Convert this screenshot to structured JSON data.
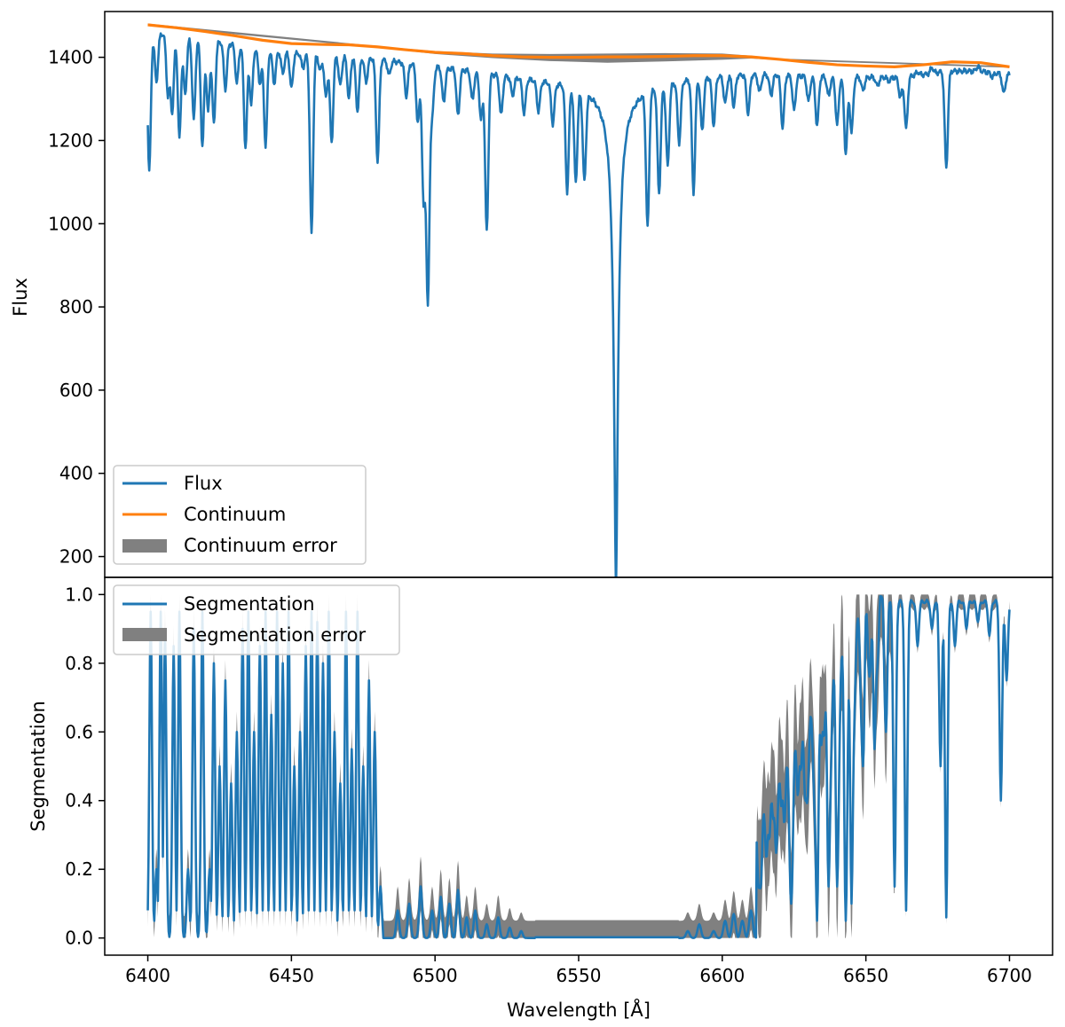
{
  "colors": {
    "flux": "#1f77b4",
    "continuum": "#ff7f0e",
    "error": "#808080",
    "frame": "#000000",
    "legend_border": "#cccccc"
  },
  "chart_data": [
    {
      "type": "line",
      "panel": "top",
      "ylabel": "Flux",
      "xlim": [
        6385,
        6715
      ],
      "ylim": [
        150,
        1510
      ],
      "yticks": [
        200,
        400,
        600,
        800,
        1000,
        1200,
        1400
      ],
      "ytick_labels": [
        "200",
        "400",
        "600",
        "800",
        "1000",
        "1200",
        "1400"
      ],
      "legend_position": "lower-left",
      "legend": [
        {
          "name": "Flux",
          "kind": "line",
          "color": "#1f77b4"
        },
        {
          "name": "Continuum",
          "kind": "line",
          "color": "#ff7f0e"
        },
        {
          "name": "Continuum error",
          "kind": "patch",
          "color": "#808080"
        }
      ],
      "continuum": {
        "x": [
          6400,
          6410,
          6420,
          6430,
          6440,
          6450,
          6460,
          6470,
          6480,
          6490,
          6500,
          6510,
          6520,
          6530,
          6540,
          6550,
          6560,
          6570,
          6580,
          6590,
          6600,
          6610,
          6620,
          6630,
          6640,
          6650,
          6660,
          6670,
          6680,
          6690,
          6700
        ],
        "y": [
          1478,
          1471,
          1462,
          1452,
          1441,
          1433,
          1431,
          1430,
          1425,
          1418,
          1412,
          1409,
          1404,
          1401,
          1400,
          1400,
          1401,
          1401,
          1402,
          1404,
          1404,
          1401,
          1395,
          1388,
          1382,
          1379,
          1377,
          1382,
          1389,
          1387,
          1377
        ]
      },
      "continuum_error": {
        "x": [
          6400,
          6480,
          6500,
          6520,
          6540,
          6560,
          6580,
          6600,
          6610,
          6620,
          6700
        ],
        "upper": [
          1481,
          1427,
          1415,
          1409,
          1408,
          1409,
          1410,
          1409,
          1404,
          1397,
          1379
        ],
        "lower": [
          1475,
          1423,
          1408,
          1398,
          1391,
          1387,
          1390,
          1394,
          1397,
          1393,
          1375
        ]
      },
      "flux": {
        "halpha": {
          "center": 6563,
          "min_flux": 190
        },
        "lines": [
          {
            "x": 6400.5,
            "y": 1115
          },
          {
            "x": 6403,
            "y": 1330
          },
          {
            "x": 6407,
            "y": 1300
          },
          {
            "x": 6408.5,
            "y": 1258
          },
          {
            "x": 6411,
            "y": 1195
          },
          {
            "x": 6413,
            "y": 1300
          },
          {
            "x": 6416,
            "y": 1240
          },
          {
            "x": 6419,
            "y": 1175
          },
          {
            "x": 6421,
            "y": 1260
          },
          {
            "x": 6423,
            "y": 1230
          },
          {
            "x": 6427,
            "y": 1315
          },
          {
            "x": 6431,
            "y": 1330
          },
          {
            "x": 6434,
            "y": 1175
          },
          {
            "x": 6436,
            "y": 1280
          },
          {
            "x": 6439,
            "y": 1330
          },
          {
            "x": 6441,
            "y": 1180
          },
          {
            "x": 6444,
            "y": 1330
          },
          {
            "x": 6447,
            "y": 1355
          },
          {
            "x": 6450,
            "y": 1320
          },
          {
            "x": 6454,
            "y": 1370
          },
          {
            "x": 6457,
            "y": 972
          },
          {
            "x": 6460,
            "y": 1365
          },
          {
            "x": 6462,
            "y": 1300
          },
          {
            "x": 6464,
            "y": 1190
          },
          {
            "x": 6467,
            "y": 1330
          },
          {
            "x": 6470,
            "y": 1300
          },
          {
            "x": 6473,
            "y": 1270
          },
          {
            "x": 6476,
            "y": 1340
          },
          {
            "x": 6480,
            "y": 1150
          },
          {
            "x": 6484,
            "y": 1360
          },
          {
            "x": 6490,
            "y": 1310
          },
          {
            "x": 6494,
            "y": 1245
          },
          {
            "x": 6496,
            "y": 1060
          },
          {
            "x": 6497.5,
            "y": 815
          },
          {
            "x": 6499,
            "y": 1270
          },
          {
            "x": 6503,
            "y": 1300
          },
          {
            "x": 6508,
            "y": 1270
          },
          {
            "x": 6513,
            "y": 1310
          },
          {
            "x": 6516,
            "y": 1265
          },
          {
            "x": 6518,
            "y": 995
          },
          {
            "x": 6523,
            "y": 1280
          },
          {
            "x": 6527,
            "y": 1330
          },
          {
            "x": 6531,
            "y": 1290
          },
          {
            "x": 6536,
            "y": 1300
          },
          {
            "x": 6541,
            "y": 1275
          },
          {
            "x": 6546,
            "y": 1120
          },
          {
            "x": 6549,
            "y": 1150
          },
          {
            "x": 6552,
            "y": 1160
          },
          {
            "x": 6574,
            "y": 1050
          },
          {
            "x": 6578,
            "y": 1120
          },
          {
            "x": 6581,
            "y": 1180
          },
          {
            "x": 6585,
            "y": 1230
          },
          {
            "x": 6590,
            "y": 1105
          },
          {
            "x": 6593,
            "y": 1250
          },
          {
            "x": 6597,
            "y": 1260
          },
          {
            "x": 6601,
            "y": 1310
          },
          {
            "x": 6604,
            "y": 1300
          },
          {
            "x": 6609,
            "y": 1280
          },
          {
            "x": 6613,
            "y": 1330
          },
          {
            "x": 6617,
            "y": 1320
          },
          {
            "x": 6621,
            "y": 1240
          },
          {
            "x": 6625,
            "y": 1280
          },
          {
            "x": 6630,
            "y": 1300
          },
          {
            "x": 6633,
            "y": 1240
          },
          {
            "x": 6637,
            "y": 1310
          },
          {
            "x": 6640,
            "y": 1240
          },
          {
            "x": 6643,
            "y": 1170
          },
          {
            "x": 6645,
            "y": 1220
          },
          {
            "x": 6649,
            "y": 1320
          },
          {
            "x": 6654,
            "y": 1330
          },
          {
            "x": 6658,
            "y": 1340
          },
          {
            "x": 6662,
            "y": 1300
          },
          {
            "x": 6664,
            "y": 1225
          },
          {
            "x": 6668,
            "y": 1360
          },
          {
            "x": 6673,
            "y": 1370
          },
          {
            "x": 6676,
            "y": 1360
          },
          {
            "x": 6678,
            "y": 1128
          },
          {
            "x": 6683,
            "y": 1360
          },
          {
            "x": 6689,
            "y": 1370
          },
          {
            "x": 6694,
            "y": 1345
          },
          {
            "x": 6698,
            "y": 1305
          }
        ]
      }
    },
    {
      "type": "line",
      "panel": "bottom",
      "ylabel": "Segmentation",
      "xlabel": "Wavelength [Å]",
      "xlim": [
        6385,
        6715
      ],
      "ylim": [
        -0.05,
        1.05
      ],
      "xticks": [
        6400,
        6450,
        6500,
        6550,
        6600,
        6650,
        6700
      ],
      "xtick_labels": [
        "6400",
        "6450",
        "6500",
        "6550",
        "6600",
        "6650",
        "6700"
      ],
      "yticks": [
        0.0,
        0.2,
        0.4,
        0.6,
        0.8,
        1.0
      ],
      "ytick_labels": [
        "0.0",
        "0.2",
        "0.4",
        "0.6",
        "0.8",
        "1.0"
      ],
      "legend_position": "upper-left",
      "legend": [
        {
          "name": "Segmentation",
          "kind": "line",
          "color": "#1f77b4"
        },
        {
          "name": "Segmentation error",
          "kind": "patch",
          "color": "#808080"
        }
      ],
      "regions": [
        {
          "range": [
            6400,
            6482
          ],
          "spikes": [
            {
              "x": 6401,
              "y": 0.95
            },
            {
              "x": 6403,
              "y": 0.2
            },
            {
              "x": 6404.5,
              "y": 0.95
            },
            {
              "x": 6406,
              "y": 0.9
            },
            {
              "x": 6409,
              "y": 0.85
            },
            {
              "x": 6411,
              "y": 0.95
            },
            {
              "x": 6414,
              "y": 0.2
            },
            {
              "x": 6416,
              "y": 0.9
            },
            {
              "x": 6419,
              "y": 0.95
            },
            {
              "x": 6421.5,
              "y": 0.2
            },
            {
              "x": 6423,
              "y": 0.8
            },
            {
              "x": 6425,
              "y": 0.5
            },
            {
              "x": 6427,
              "y": 0.75
            },
            {
              "x": 6429,
              "y": 0.45
            },
            {
              "x": 6431,
              "y": 0.6
            },
            {
              "x": 6433,
              "y": 0.9
            },
            {
              "x": 6435,
              "y": 0.95
            },
            {
              "x": 6437,
              "y": 0.6
            },
            {
              "x": 6439,
              "y": 0.85
            },
            {
              "x": 6441,
              "y": 0.95
            },
            {
              "x": 6443,
              "y": 0.65
            },
            {
              "x": 6445,
              "y": 0.95
            },
            {
              "x": 6447,
              "y": 0.8
            },
            {
              "x": 6449,
              "y": 0.95
            },
            {
              "x": 6451,
              "y": 0.5
            },
            {
              "x": 6453,
              "y": 0.6
            },
            {
              "x": 6455,
              "y": 0.85
            },
            {
              "x": 6457,
              "y": 0.95
            },
            {
              "x": 6459,
              "y": 0.92
            },
            {
              "x": 6461,
              "y": 0.8
            },
            {
              "x": 6463,
              "y": 0.95
            },
            {
              "x": 6465,
              "y": 0.6
            },
            {
              "x": 6467,
              "y": 0.45
            },
            {
              "x": 6469,
              "y": 0.95
            },
            {
              "x": 6471,
              "y": 0.55
            },
            {
              "x": 6473,
              "y": 0.95
            },
            {
              "x": 6475,
              "y": 0.5
            },
            {
              "x": 6477,
              "y": 0.75
            },
            {
              "x": 6479,
              "y": 0.6
            },
            {
              "x": 6481,
              "y": 0.15
            }
          ]
        },
        {
          "range": [
            6482,
            6535
          ],
          "spikes": [
            {
              "x": 6487,
              "y": 0.08
            },
            {
              "x": 6491,
              "y": 0.1
            },
            {
              "x": 6495,
              "y": 0.15
            },
            {
              "x": 6499,
              "y": 0.08
            },
            {
              "x": 6502,
              "y": 0.12
            },
            {
              "x": 6505,
              "y": 0.1
            },
            {
              "x": 6508,
              "y": 0.14
            },
            {
              "x": 6511,
              "y": 0.06
            },
            {
              "x": 6514,
              "y": 0.08
            },
            {
              "x": 6518,
              "y": 0.04
            },
            {
              "x": 6522,
              "y": 0.06
            },
            {
              "x": 6526,
              "y": 0.03
            },
            {
              "x": 6530,
              "y": 0.02
            }
          ]
        },
        {
          "range": [
            6585,
            6612
          ],
          "spikes": [
            {
              "x": 6588,
              "y": 0.02
            },
            {
              "x": 6592,
              "y": 0.04
            },
            {
              "x": 6597,
              "y": 0.02
            },
            {
              "x": 6601,
              "y": 0.05
            },
            {
              "x": 6604,
              "y": 0.07
            },
            {
              "x": 6607,
              "y": 0.05
            },
            {
              "x": 6610,
              "y": 0.08
            }
          ]
        },
        {
          "range": [
            6612,
            6700
          ],
          "dips": [
            {
              "x": 6613,
              "y": 0.15
            },
            {
              "x": 6616,
              "y": 0.3
            },
            {
              "x": 6618,
              "y": 0.35
            },
            {
              "x": 6621,
              "y": 0.4
            },
            {
              "x": 6624,
              "y": 0.1
            },
            {
              "x": 6627,
              "y": 0.5
            },
            {
              "x": 6629,
              "y": 0.4
            },
            {
              "x": 6633,
              "y": 0.05
            },
            {
              "x": 6635,
              "y": 0.6
            },
            {
              "x": 6637,
              "y": 0.15
            },
            {
              "x": 6640,
              "y": 0.15
            },
            {
              "x": 6643,
              "y": 0.05
            },
            {
              "x": 6645,
              "y": 0.1
            },
            {
              "x": 6649,
              "y": 0.5
            },
            {
              "x": 6653,
              "y": 0.55
            },
            {
              "x": 6657,
              "y": 0.6
            },
            {
              "x": 6660,
              "y": 0.15
            },
            {
              "x": 6664,
              "y": 0.08
            },
            {
              "x": 6668,
              "y": 0.85
            },
            {
              "x": 6673,
              "y": 0.9
            },
            {
              "x": 6676,
              "y": 0.5
            },
            {
              "x": 6678,
              "y": 0.06
            },
            {
              "x": 6681,
              "y": 0.85
            },
            {
              "x": 6685,
              "y": 0.9
            },
            {
              "x": 6689,
              "y": 0.92
            },
            {
              "x": 6693,
              "y": 0.88
            },
            {
              "x": 6697,
              "y": 0.4
            },
            {
              "x": 6699,
              "y": 0.75
            }
          ]
        }
      ]
    }
  ]
}
